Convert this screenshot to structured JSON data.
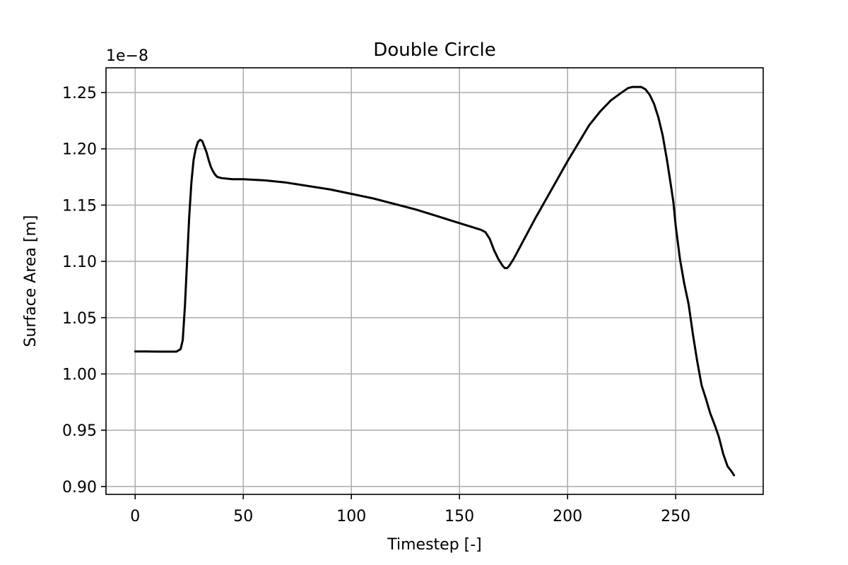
{
  "chart_data": {
    "type": "line",
    "title": "Double Circle",
    "xlabel": "Timestep [-]",
    "ylabel": "Surface Area [m]",
    "y_offset_label": "1e−8",
    "xlim": [
      -13.5,
      290.5
    ],
    "ylim": [
      0.893,
      1.272
    ],
    "x_ticks": [
      0,
      50,
      100,
      150,
      200,
      250
    ],
    "x_tick_labels": [
      "0",
      "50",
      "100",
      "150",
      "200",
      "250"
    ],
    "y_ticks": [
      0.9,
      0.95,
      1.0,
      1.05,
      1.1,
      1.15,
      1.2,
      1.25
    ],
    "y_tick_labels": [
      "0.90",
      "0.95",
      "1.00",
      "1.05",
      "1.10",
      "1.15",
      "1.20",
      "1.25"
    ],
    "grid": true,
    "series": [
      {
        "name": "surface_area",
        "color": "#000000",
        "x": [
          0,
          5,
          10,
          15,
          19,
          21,
          22,
          23,
          24,
          25,
          26,
          27,
          28,
          29,
          30,
          31,
          32,
          33,
          34,
          35,
          36,
          37,
          38,
          40,
          45,
          50,
          60,
          70,
          80,
          90,
          100,
          110,
          120,
          130,
          140,
          150,
          155,
          160,
          162,
          164,
          166,
          168,
          170,
          171,
          172,
          173,
          175,
          180,
          185,
          190,
          195,
          200,
          205,
          210,
          215,
          220,
          225,
          228,
          230,
          232,
          234,
          236,
          238,
          240,
          242,
          244,
          246,
          248,
          249,
          250,
          252,
          254,
          256,
          258,
          260,
          262,
          264,
          266,
          268,
          270,
          272,
          274,
          276,
          277
        ],
        "values": [
          1.02,
          1.02,
          1.0198,
          1.0198,
          1.0198,
          1.022,
          1.03,
          1.06,
          1.1,
          1.14,
          1.17,
          1.19,
          1.2,
          1.206,
          1.208,
          1.207,
          1.202,
          1.197,
          1.19,
          1.184,
          1.18,
          1.177,
          1.175,
          1.174,
          1.173,
          1.173,
          1.172,
          1.17,
          1.167,
          1.164,
          1.16,
          1.156,
          1.151,
          1.146,
          1.14,
          1.134,
          1.131,
          1.128,
          1.126,
          1.12,
          1.11,
          1.102,
          1.096,
          1.094,
          1.094,
          1.096,
          1.102,
          1.12,
          1.138,
          1.155,
          1.172,
          1.189,
          1.205,
          1.221,
          1.233,
          1.243,
          1.25,
          1.254,
          1.255,
          1.255,
          1.255,
          1.253,
          1.248,
          1.24,
          1.228,
          1.212,
          1.19,
          1.165,
          1.152,
          1.132,
          1.102,
          1.08,
          1.062,
          1.035,
          1.011,
          0.99,
          0.978,
          0.965,
          0.955,
          0.944,
          0.929,
          0.918,
          0.913,
          0.91
        ]
      }
    ]
  }
}
